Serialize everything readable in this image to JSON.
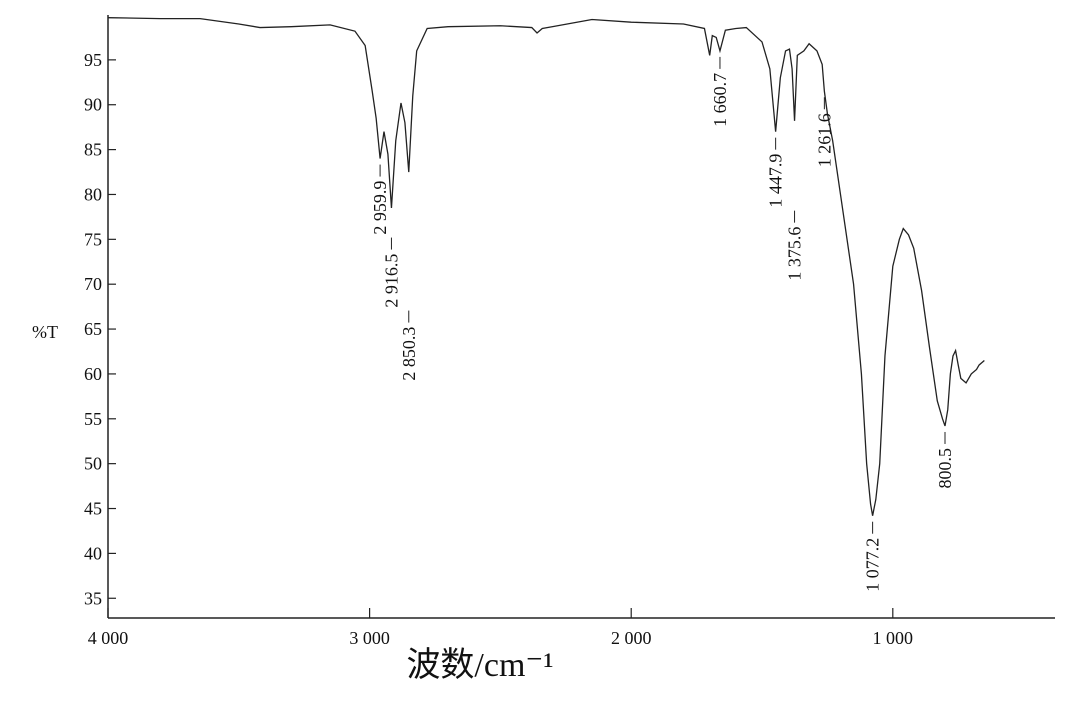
{
  "chart_data": {
    "type": "line",
    "x_label": "波数/cm⁻¹",
    "y_label": "%T",
    "xlim": [
      4000,
      380
    ],
    "ylim": [
      32.8,
      100
    ],
    "xticks": [
      {
        "value": 4000,
        "label": "4 000"
      },
      {
        "value": 3000,
        "label": "3 000"
      },
      {
        "value": 2000,
        "label": "2 000"
      },
      {
        "value": 1000,
        "label": "1 000"
      }
    ],
    "yticks": [
      35,
      40,
      45,
      50,
      55,
      60,
      65,
      70,
      75,
      80,
      85,
      90,
      95
    ],
    "series": [
      {
        "color": "#222222",
        "x": [
          4000,
          3800,
          3648,
          3500,
          3419,
          3300,
          3151,
          3056,
          3017,
          2990,
          2975,
          2959.9,
          2945,
          2930,
          2916.5,
          2900,
          2880,
          2865,
          2850.3,
          2835,
          2820,
          2780,
          2700,
          2500,
          2380,
          2360,
          2340,
          2300,
          2150,
          2000,
          1800,
          1720,
          1700,
          1690,
          1675,
          1660.7,
          1640,
          1600,
          1560,
          1500,
          1470,
          1447.9,
          1430,
          1410,
          1395,
          1385,
          1375.6,
          1365,
          1340,
          1320,
          1290,
          1270,
          1261.6,
          1250,
          1240,
          1230,
          1200,
          1150,
          1120,
          1100,
          1085,
          1077.2,
          1065,
          1050,
          1030,
          1000,
          975,
          960,
          940,
          920,
          890,
          860,
          830,
          810,
          800.5,
          790,
          780,
          770,
          760,
          750,
          740,
          720,
          700,
          680,
          670,
          650
        ],
        "values": [
          99.7,
          99.6,
          99.6,
          99.0,
          98.6,
          98.7,
          98.9,
          98.2,
          96.6,
          91.5,
          88.5,
          84.0,
          87.0,
          84.5,
          78.5,
          86.0,
          90.2,
          88.0,
          82.5,
          91.0,
          96.0,
          98.5,
          98.7,
          98.8,
          98.6,
          98.0,
          98.5,
          98.7,
          99.5,
          99.2,
          99.0,
          98.5,
          95.5,
          97.7,
          97.5,
          96.0,
          98.3,
          98.5,
          98.6,
          97.0,
          94.0,
          87.0,
          93.0,
          96.0,
          96.2,
          94.0,
          88.2,
          95.5,
          96.0,
          96.8,
          96.0,
          94.5,
          91.5,
          89.0,
          87.5,
          86.0,
          80.0,
          70.0,
          60.0,
          50.0,
          45.5,
          44.2,
          46.0,
          50.0,
          62.0,
          72.0,
          75.0,
          76.2,
          75.5,
          74.0,
          69.3,
          63.0,
          57.0,
          55.0,
          54.2,
          56.0,
          60.0,
          62.0,
          62.6,
          61.0,
          59.5,
          59.0,
          60.0,
          60.5,
          61.0,
          61.5
        ]
      }
    ],
    "annotations": [
      {
        "value": 2959.9,
        "label": "2 959.9"
      },
      {
        "value": 2916.5,
        "label": "2 916.5"
      },
      {
        "value": 2850.3,
        "label": "2 850.3"
      },
      {
        "value": 1660.7,
        "label": "1 660.7"
      },
      {
        "value": 1447.9,
        "label": "1 447.9"
      },
      {
        "value": 1375.6,
        "label": "1 375.6"
      },
      {
        "value": 1261.6,
        "label": "1 261.6"
      },
      {
        "value": 1077.2,
        "label": "1 077.2"
      },
      {
        "value": 800.5,
        "label": "800.5"
      }
    ]
  }
}
